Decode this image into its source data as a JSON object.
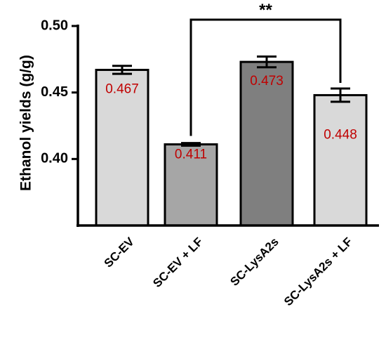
{
  "chart_data": {
    "type": "bar",
    "ylabel": "Ethanol yields (g/g)",
    "ylim": [
      0.35,
      0.5
    ],
    "yticks": [
      0.4,
      0.45,
      0.5
    ],
    "ytick_labels": [
      "0.40",
      "0.45",
      "0.50"
    ],
    "categories": [
      "SC-EV",
      "SC-EV + LF",
      "SC-LysA2s",
      "SC-LysA2s + LF"
    ],
    "values": [
      0.467,
      0.411,
      0.473,
      0.448
    ],
    "errors": [
      0.003,
      0.001,
      0.004,
      0.005
    ],
    "data_labels": [
      "0.467",
      "0.411",
      "0.473",
      "0.448"
    ],
    "bar_colors": [
      "#d9d9d9",
      "#a6a6a6",
      "#7f7f7f",
      "#d9d9d9"
    ],
    "value_label_color": "#c00000",
    "significance": {
      "from": 1,
      "to": 3,
      "label": "**"
    },
    "grid": false,
    "legend": "none"
  }
}
